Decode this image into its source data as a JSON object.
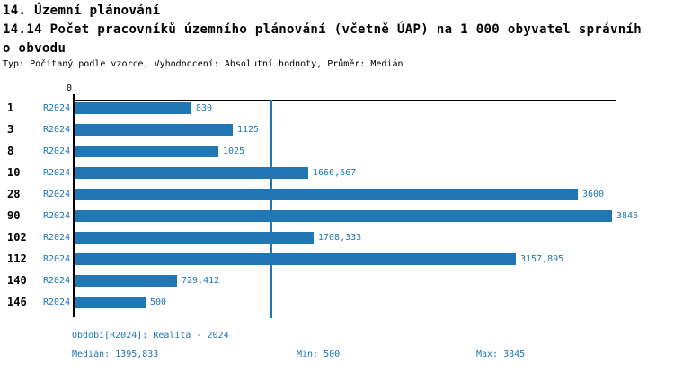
{
  "colors": {
    "accent": "#2077b4",
    "axis": "#000000",
    "background": "#ffffff"
  },
  "header": {
    "section_title": "14. Územní plánování",
    "indicator_title_line1": "14.14 Počet pracovníků územního plánování (včetně ÚAP) na 1 000 obyvatel správníh",
    "indicator_title_line2": "o obvodu",
    "meta": "Typ: Počítaný podle vzorce, Vyhodnocení: Absolutní hodnoty, Průměr: Medián"
  },
  "chart_data": {
    "type": "bar",
    "orientation": "horizontal",
    "title": "14.14 Počet pracovníků územního plánování (včetně ÚAP) na 1 000 obyvatel správního obvodu",
    "categories": [
      "1",
      "3",
      "8",
      "10",
      "28",
      "90",
      "102",
      "112",
      "140",
      "146"
    ],
    "series": [
      {
        "name": "R2024",
        "values": [
          830,
          1125,
          1025,
          1666.667,
          3600,
          3845,
          1708.333,
          3157.895,
          729.412,
          500
        ]
      }
    ],
    "value_labels": [
      "830",
      "1125",
      "1025",
      "1666,667",
      "3600",
      "3845",
      "1708,333",
      "3157,895",
      "729,412",
      "500"
    ],
    "axis": {
      "tick0": "0",
      "xmin": 0,
      "xmax": 3845,
      "grid": false
    },
    "median_reference_line": 1395.833,
    "legend_position": "none"
  },
  "footer": {
    "period": "Období[R2024]: Realita - 2024",
    "median": "Medián: 1395,833",
    "min": "Min: 500",
    "max": "Max: 3845"
  }
}
